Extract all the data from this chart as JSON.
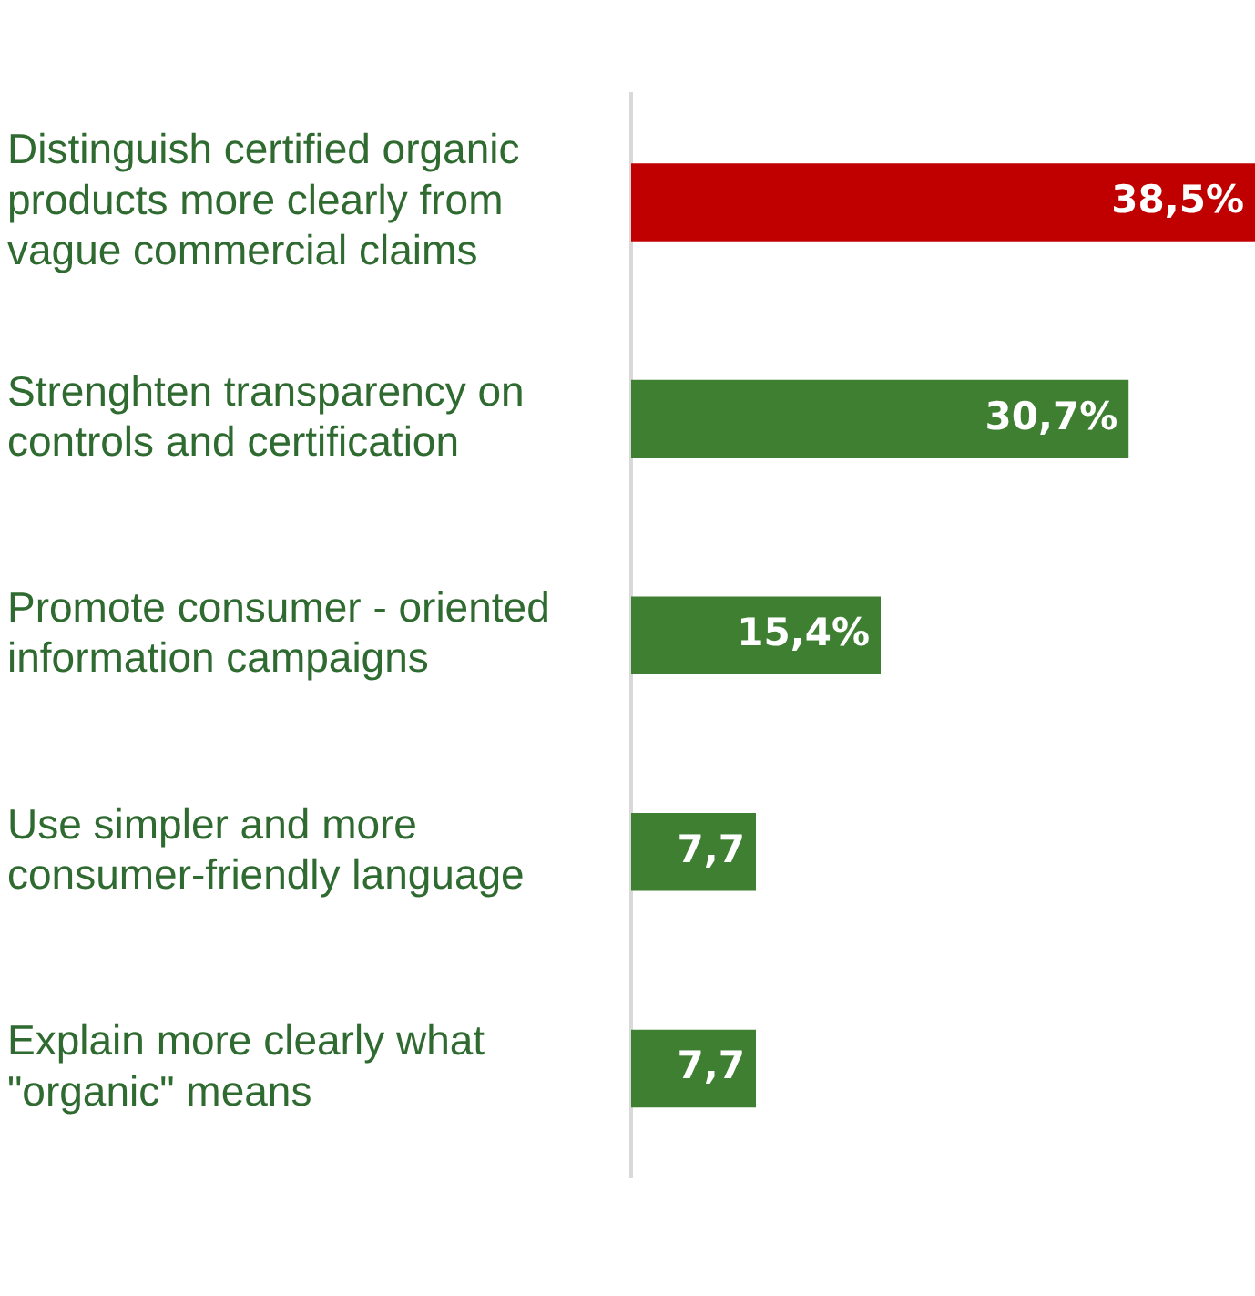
{
  "chart_data": {
    "type": "bar",
    "orientation": "horizontal",
    "categories": [
      "Distinguish certified organic products more clearly from vague commercial claims",
      "Strenghten transparency on controls and certification",
      "Promote consumer - oriented information campaigns",
      "Use simpler and more consumer-friendly language",
      "Explain more clearly what \"organic\" means"
    ],
    "values": [
      38.5,
      30.7,
      15.4,
      7.7,
      7.7
    ],
    "colors": [
      "#c00000",
      "#3e7f32",
      "#3e7f32",
      "#3e7f32",
      "#3e7f32"
    ],
    "value_labels": [
      "38,5%",
      "30,7%",
      "15,4%",
      "7,7",
      "7,7"
    ],
    "xlim": [
      0,
      38.5
    ],
    "tick_labels": "y",
    "grid": false,
    "legend": false
  }
}
